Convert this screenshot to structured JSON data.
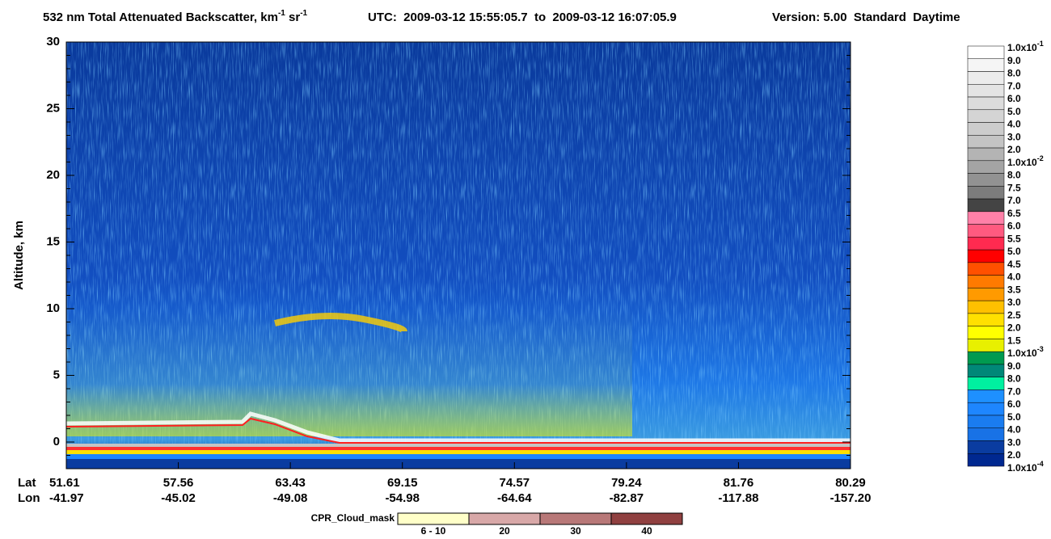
{
  "chart_data": {
    "type": "heatmap",
    "title_parts": [
      {
        "text": "532 nm Total Attenuated Backscatter, km"
      },
      {
        "sup": "-1"
      },
      {
        "text": " sr"
      },
      {
        "sup": "-1"
      }
    ],
    "time_range": "UTC:  2009-03-12 15:55:05.7  to  2009-03-12 16:07:05.9",
    "version": "Version: 5.00  Standard  Daytime",
    "ylabel": "Altitude, km",
    "ylim": [
      -2,
      30
    ],
    "yticks": [
      0,
      5,
      10,
      15,
      20,
      25,
      30
    ],
    "x_rows": [
      {
        "name": "Lat",
        "labels": [
          "51.61",
          "57.56",
          "63.43",
          "69.15",
          "74.57",
          "79.24",
          "81.76",
          "80.29"
        ]
      },
      {
        "name": "Lon",
        "labels": [
          "-41.97",
          "-45.02",
          "-49.08",
          "-54.98",
          "-64.64",
          "-82.87",
          "-117.88",
          "-157.20"
        ]
      }
    ],
    "colorbar": {
      "levels": [
        {
          "label": "1.0x10",
          "exp": "-1"
        },
        {
          "label": "9.0"
        },
        {
          "label": "8.0"
        },
        {
          "label": "7.0"
        },
        {
          "label": "6.0"
        },
        {
          "label": "5.0"
        },
        {
          "label": "4.0"
        },
        {
          "label": "3.0"
        },
        {
          "label": "2.0"
        },
        {
          "label": "1.0x10",
          "exp": "-2"
        },
        {
          "label": "8.0"
        },
        {
          "label": "7.5"
        },
        {
          "label": "7.0"
        },
        {
          "label": "6.5"
        },
        {
          "label": "6.0"
        },
        {
          "label": "5.5"
        },
        {
          "label": "5.0"
        },
        {
          "label": "4.5"
        },
        {
          "label": "4.0"
        },
        {
          "label": "3.5"
        },
        {
          "label": "3.0"
        },
        {
          "label": "2.5"
        },
        {
          "label": "2.0"
        },
        {
          "label": "1.5"
        },
        {
          "label": "1.0x10",
          "exp": "-3"
        },
        {
          "label": "9.0"
        },
        {
          "label": "8.0"
        },
        {
          "label": "7.0"
        },
        {
          "label": "6.0"
        },
        {
          "label": "5.0"
        },
        {
          "label": "4.0"
        },
        {
          "label": "3.0"
        },
        {
          "label": "2.0"
        },
        {
          "label": "1.0x10",
          "exp": "-4"
        }
      ],
      "colors": [
        "#ffffff",
        "#f5f5f5",
        "#ececec",
        "#e4e4e4",
        "#dcdcdc",
        "#d4d4d4",
        "#cccccc",
        "#c4c4c4",
        "#b4b4b4",
        "#a4a4a4",
        "#929292",
        "#7c7c7c",
        "#444444",
        "#ff80a8",
        "#ff5a80",
        "#ff2a50",
        "#ff0000",
        "#ff5000",
        "#ff7a00",
        "#ff9a00",
        "#ffc000",
        "#ffe000",
        "#ffff00",
        "#e8f000",
        "#009a50",
        "#008878",
        "#00f0a0",
        "#1e90ff",
        "#1e86ff",
        "#1a7cf0",
        "#1872e6",
        "#0a3ca0",
        "#002890"
      ]
    },
    "cloud_mask": {
      "label": "CPR_Cloud_mask",
      "items": [
        {
          "label": "6 - 10",
          "color": "#ffffc8"
        },
        {
          "label": "20",
          "color": "#d8a8a8"
        },
        {
          "label": "30",
          "color": "#b87878"
        },
        {
          "label": "40",
          "color": "#904040"
        }
      ]
    }
  }
}
